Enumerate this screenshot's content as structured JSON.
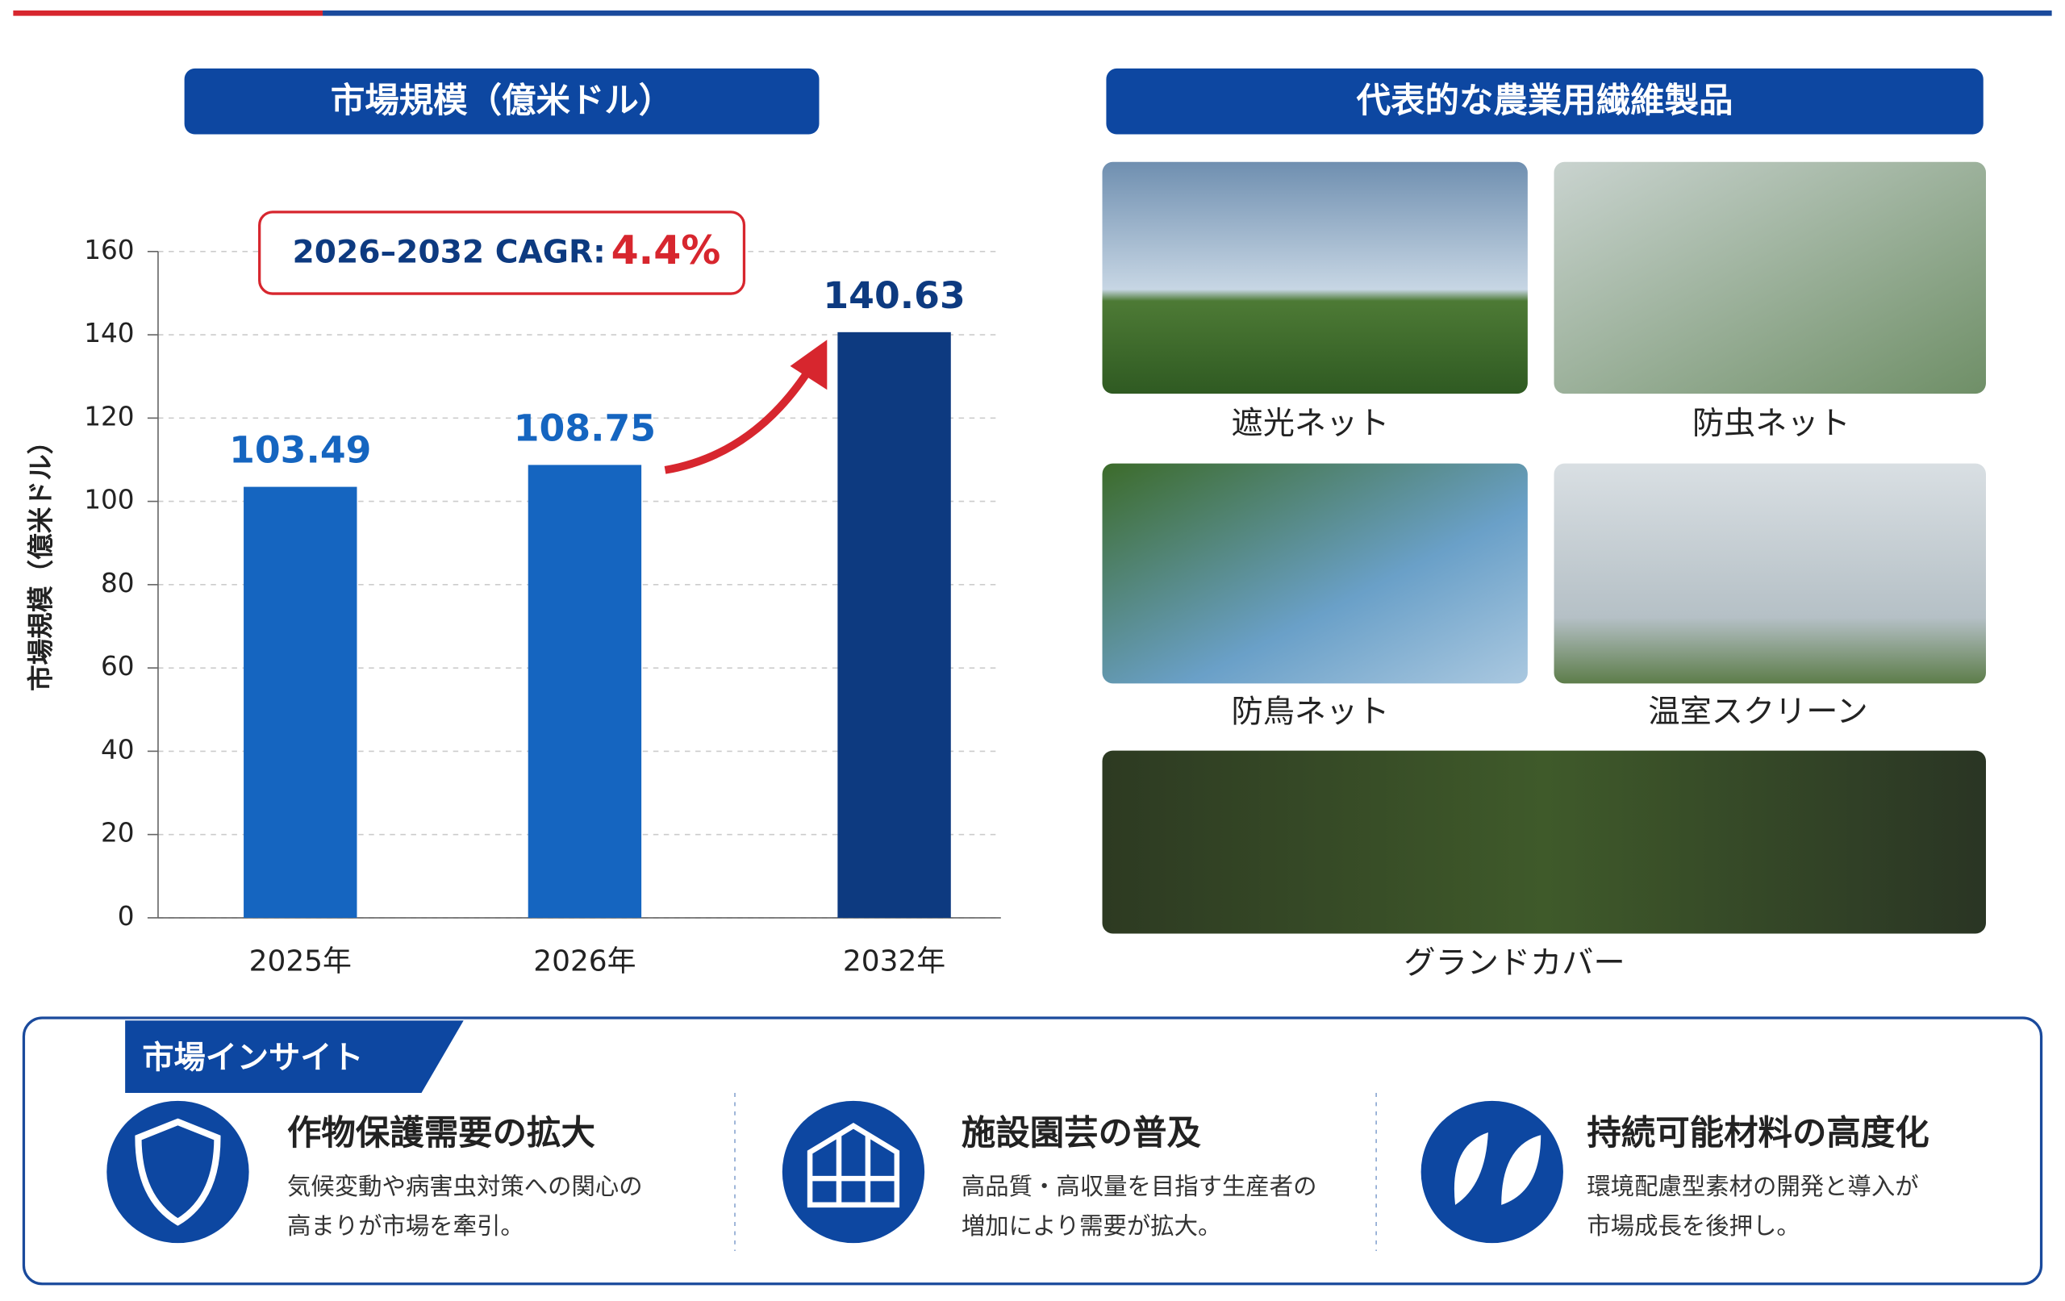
{
  "chart_data": {
    "type": "bar",
    "title": "市場規模（億米ドル）",
    "y_label": "市場規模（億米ドル）",
    "categories": [
      "2025年",
      "2026年",
      "2032年"
    ],
    "values": [
      103.49,
      108.75,
      140.63
    ],
    "colors": [
      "#1565c0",
      "#1565c0",
      "#0d3a80"
    ],
    "ylim": [
      0,
      160
    ],
    "yticks": [
      0,
      20,
      40,
      60,
      80,
      100,
      120,
      140,
      160
    ],
    "grid": true,
    "annotation": {
      "label": "2026–2032 CAGR:",
      "value": "4.4%"
    }
  },
  "products": {
    "title": "代表的な農業用繊維製品",
    "items": [
      "遮光ネット",
      "防虫ネット",
      "防鳥ネット",
      "温室スクリーン",
      "グランドカバー"
    ]
  },
  "insights": {
    "title": "市場インサイト",
    "items": [
      {
        "title": "作物保護需要の拡大",
        "desc": [
          "気候変動や病害虫対策への関心の",
          "高まりが市場を牽引。"
        ]
      },
      {
        "title": "施設園芸の普及",
        "desc": [
          "高品質・高収量を目指す生産者の",
          "増加により需要が拡大。"
        ]
      },
      {
        "title": "持続可能材料の高度化",
        "desc": [
          "環境配慮型素材の開発と導入が",
          "市場成長を後押し。"
        ]
      }
    ]
  }
}
